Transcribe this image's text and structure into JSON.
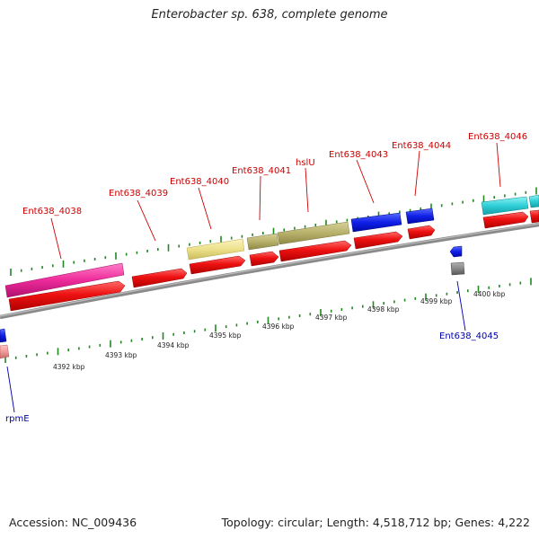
{
  "title": "Enterobacter sp. 638, complete genome",
  "accession": "Accession: NC_009436",
  "summary": "Topology: circular; Length: 4,518,712 bp; Genes: 4,222",
  "colors": {
    "forward_label": "#cc0000",
    "reverse_label": "#0000aa",
    "cds": "#ee1111",
    "backbone": "#888888",
    "tick": "#228822"
  },
  "gene_labels_forward": [
    "Ent638_4038",
    "Ent638_4039",
    "Ent638_4040",
    "Ent638_4041",
    "hslU",
    "Ent638_4043",
    "Ent638_4044",
    "Ent638_4046"
  ],
  "gene_labels_reverse": [
    "Ent638_4045",
    "rpmE"
  ],
  "scale_labels": [
    "4392 kbp",
    "4393 kbp",
    "4394 kbp",
    "4395 kbp",
    "4396 kbp",
    "4397 kbp",
    "4398 kbp",
    "4399 kbp",
    "4400 kbp"
  ]
}
